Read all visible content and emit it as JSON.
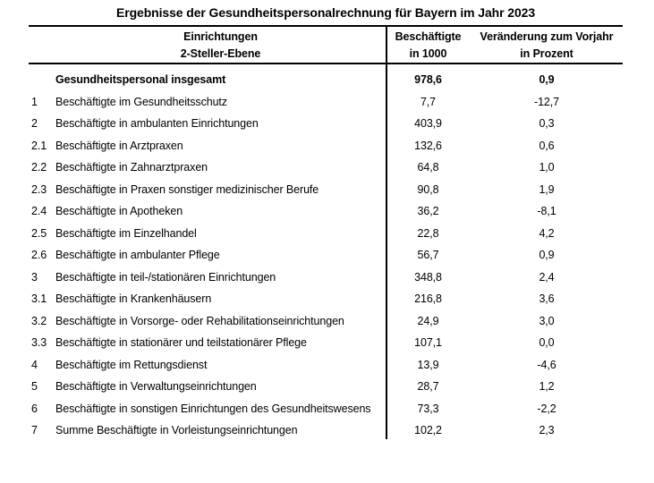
{
  "title": "Ergebnisse der Gesundheitspersonalrechnung für Bayern im Jahr 2023",
  "table": {
    "columns": [
      {
        "line1": "Einrichtungen",
        "line2": "2-Steller-Ebene"
      },
      {
        "line1": "Beschäftigte",
        "line2": "in 1000"
      },
      {
        "line1": "Veränderung zum Vorjahr",
        "line2": "in Prozent"
      }
    ],
    "rows": [
      {
        "code": "",
        "label": "Gesundheitspersonal insgesamt",
        "employees": "978,6",
        "change": "0,9",
        "bold": true
      },
      {
        "code": "1",
        "label": "Beschäftigte im Gesundheitsschutz",
        "employees": "7,7",
        "change": "-12,7",
        "bold": false
      },
      {
        "code": "2",
        "label": "Beschäftigte in ambulanten Einrichtungen",
        "employees": "403,9",
        "change": "0,3",
        "bold": false
      },
      {
        "code": "2.1",
        "label": "Beschäftigte in Arztpraxen",
        "employees": "132,6",
        "change": "0,6",
        "bold": false
      },
      {
        "code": "2.2",
        "label": "Beschäftigte in Zahnarztpraxen",
        "employees": "64,8",
        "change": "1,0",
        "bold": false
      },
      {
        "code": "2.3",
        "label": "Beschäftigte in Praxen sonstiger medizinischer Berufe",
        "employees": "90,8",
        "change": "1,9",
        "bold": false
      },
      {
        "code": "2.4",
        "label": "Beschäftigte in Apotheken",
        "employees": "36,2",
        "change": "-8,1",
        "bold": false
      },
      {
        "code": "2.5",
        "label": "Beschäftigte im Einzelhandel",
        "employees": "22,8",
        "change": "4,2",
        "bold": false
      },
      {
        "code": "2.6",
        "label": "Beschäftigte in ambulanter Pflege",
        "employees": "56,7",
        "change": "0,9",
        "bold": false
      },
      {
        "code": "3",
        "label": "Beschäftigte in teil-/stationären Einrichtungen",
        "employees": "348,8",
        "change": "2,4",
        "bold": false
      },
      {
        "code": "3.1",
        "label": "Beschäftigte in Krankenhäusern",
        "employees": "216,8",
        "change": "3,6",
        "bold": false
      },
      {
        "code": "3.2",
        "label": "Beschäftigte in Vorsorge- oder Rehabilitationseinrichtungen",
        "employees": "24,9",
        "change": "3,0",
        "bold": false
      },
      {
        "code": "3.3",
        "label": "Beschäftigte in stationärer und teilstationärer Pflege",
        "employees": "107,1",
        "change": "0,0",
        "bold": false
      },
      {
        "code": "4",
        "label": "Beschäftigte im Rettungsdienst",
        "employees": "13,9",
        "change": "-4,6",
        "bold": false
      },
      {
        "code": "5",
        "label": "Beschäftigte in Verwaltungseinrichtungen",
        "employees": "28,7",
        "change": "1,2",
        "bold": false
      },
      {
        "code": "6",
        "label": "Beschäftigte in sonstigen Einrichtungen des Gesundheitswesens",
        "employees": "73,3",
        "change": "-2,2",
        "bold": false
      },
      {
        "code": "7",
        "label": "Summe Beschäftigte in Vorleistungseinrichtungen",
        "employees": "102,2",
        "change": "2,3",
        "bold": false
      }
    ]
  },
  "colors": {
    "background": "#ffffff",
    "text": "#000000",
    "rule": "#000000"
  }
}
